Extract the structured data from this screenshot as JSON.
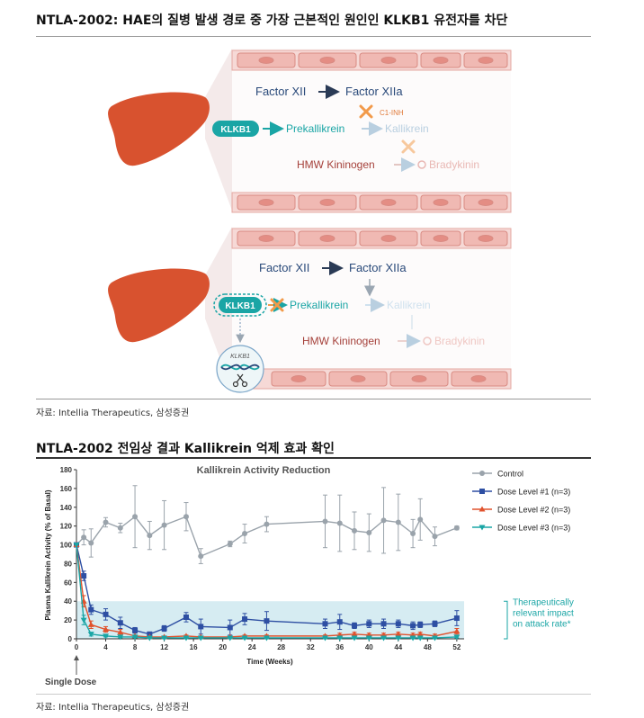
{
  "section1": {
    "title": "NTLA-2002: HAE의 질병 발생 경로 중 가장 근본적인 원인인 KLKB1 유전자를 차단",
    "source": "자료: Intellia Therapeutics, 삼성증권",
    "diagram": {
      "top": {
        "factor_xii": "Factor XII",
        "factor_xiia": "Factor XIIa",
        "klkb1": "KLKB1",
        "prekallikrein": "Prekallikrein",
        "kallikrein": "Kallikrein",
        "c1_inh": "C1-INH",
        "hmw_kininogen": "HMW Kininogen",
        "bradykinin": "Bradykinin"
      },
      "bottom": {
        "factor_xii": "Factor XII",
        "factor_xiia": "Factor XIIa",
        "klkb1": "KLKB1",
        "prekallikrein": "Prekallikrein",
        "kallikrein": "Kallikrein",
        "hmw_kininogen": "HMW Kininogen",
        "bradykinin": "Bradykinin",
        "dna_label": "KLKB1"
      }
    }
  },
  "section2": {
    "title": "NTLA-2002 전임상 결과 Kallikrein 억제 효과 확인",
    "source": "자료: Intellia Therapeutics, 삼성증권"
  },
  "chart_data": {
    "type": "line",
    "title": "Kallikrein Activity Reduction",
    "xlabel": "Time (Weeks)",
    "ylabel": "Plasma Kallikrein Activity (% of Basal)",
    "xlim": [
      0,
      53
    ],
    "ylim": [
      0,
      180
    ],
    "xticks": [
      0,
      4,
      8,
      12,
      16,
      20,
      24,
      28,
      32,
      36,
      40,
      44,
      48,
      52
    ],
    "yticks": [
      0,
      20,
      40,
      60,
      80,
      100,
      120,
      140,
      160,
      180
    ],
    "legend_position": "right",
    "band": {
      "y_range": [
        0,
        40
      ],
      "label": "Therapeutically relevant impact on attack rate*",
      "color": "#d6ecf2"
    },
    "annotation": "Single Dose",
    "colors": {
      "control": "#9aa3ab",
      "dose1": "#2e4fa3",
      "dose2": "#e0522d",
      "dose3": "#1aa5a5"
    },
    "series": [
      {
        "name": "Control",
        "marker": "circle",
        "x": [
          0,
          1,
          2,
          4,
          6,
          8,
          10,
          12,
          15,
          17,
          21,
          23,
          26,
          34,
          36,
          38,
          40,
          42,
          44,
          46,
          47,
          49,
          52
        ],
        "y": [
          100,
          108,
          102,
          124,
          118,
          130,
          110,
          121,
          130,
          88,
          101,
          112,
          122,
          125,
          123,
          115,
          113,
          126,
          124,
          112,
          127,
          109,
          118
        ],
        "err": [
          0,
          8,
          15,
          5,
          5,
          33,
          15,
          26,
          15,
          8,
          3,
          10,
          8,
          28,
          30,
          20,
          20,
          35,
          30,
          15,
          22,
          10,
          2
        ]
      },
      {
        "name": "Dose Level #1 (n=3)",
        "marker": "square",
        "x": [
          0,
          1,
          2,
          4,
          6,
          8,
          10,
          12,
          15,
          17,
          21,
          23,
          26,
          34,
          36,
          38,
          40,
          42,
          44,
          46,
          47,
          49,
          52
        ],
        "y": [
          100,
          67,
          31,
          26,
          17,
          9,
          5,
          11,
          23,
          13,
          12,
          21,
          19,
          16,
          18,
          14,
          16,
          16,
          16,
          14,
          15,
          16,
          22
        ],
        "err": [
          0,
          5,
          5,
          6,
          6,
          3,
          2,
          3,
          5,
          8,
          8,
          6,
          10,
          5,
          8,
          3,
          4,
          5,
          4,
          4,
          3,
          3,
          8
        ]
      },
      {
        "name": "Dose Level #2 (n=3)",
        "marker": "triangle-up",
        "x": [
          0,
          1,
          2,
          4,
          6,
          8,
          10,
          12,
          15,
          17,
          21,
          23,
          26,
          34,
          36,
          38,
          40,
          42,
          44,
          46,
          47,
          49,
          52
        ],
        "y": [
          100,
          40,
          15,
          10,
          7,
          3,
          2,
          2,
          3,
          2,
          2,
          3,
          3,
          3,
          4,
          5,
          4,
          4,
          5,
          4,
          5,
          3,
          8
        ],
        "err": [
          0,
          6,
          4,
          3,
          3,
          1,
          1,
          1,
          1,
          1,
          1,
          1,
          1,
          1,
          2,
          2,
          2,
          2,
          2,
          2,
          2,
          2,
          3
        ]
      },
      {
        "name": "Dose Level #3 (n=3)",
        "marker": "triangle-down",
        "x": [
          0,
          1,
          2,
          4,
          6,
          8,
          10,
          12,
          15,
          17,
          21,
          23,
          26,
          34,
          36,
          38,
          40,
          42,
          44,
          46,
          47,
          49,
          52
        ],
        "y": [
          100,
          20,
          5,
          3,
          2,
          2,
          1,
          1,
          1,
          1,
          1,
          1,
          1,
          1,
          1,
          1,
          1,
          1,
          1,
          1,
          1,
          1,
          2
        ],
        "err": [
          0,
          5,
          2,
          1,
          1,
          1,
          1,
          1,
          1,
          1,
          1,
          1,
          1,
          1,
          1,
          1,
          1,
          1,
          1,
          1,
          1,
          1,
          1
        ]
      }
    ]
  }
}
